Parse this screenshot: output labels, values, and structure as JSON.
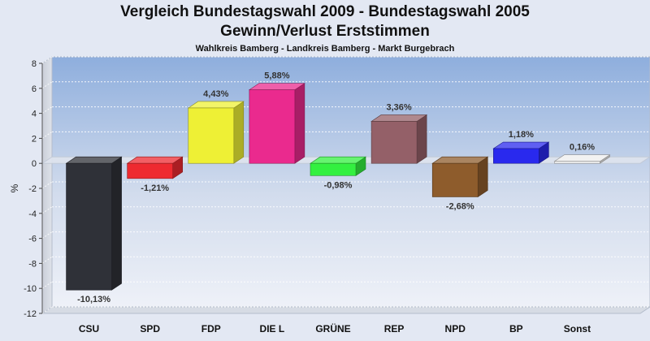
{
  "chart_data": {
    "type": "bar",
    "title": "Vergleich Bundestagswahl 2009 - Bundestagswahl 2005",
    "title2": "Gewinn/Verlust Erststimmen",
    "subtitle": "Wahlkreis Bamberg - Landkreis Bamberg - Markt Burgebrach",
    "ylabel": "%",
    "xlabel": "",
    "ylim": [
      -12,
      8
    ],
    "yticks": [
      8,
      6,
      4,
      2,
      0,
      -2,
      -4,
      -6,
      -8,
      -10,
      -12
    ],
    "grid": true,
    "categories": [
      "CSU",
      "SPD",
      "FDP",
      "DIE L",
      "GRÜNE",
      "REP",
      "NPD",
      "BP",
      "Sonst"
    ],
    "values": [
      -10.13,
      -1.21,
      4.43,
      5.88,
      -0.98,
      3.36,
      -2.68,
      1.18,
      0.16
    ],
    "value_labels": [
      "-10,13%",
      "-1,21%",
      "4,43%",
      "5,88%",
      "-0,98%",
      "3,36%",
      "-2,68%",
      "1,18%",
      "0,16%"
    ],
    "colors": [
      "#2f3138",
      "#ee2a30",
      "#eef035",
      "#ea2a8e",
      "#33f040",
      "#946068",
      "#8e5c2c",
      "#2929ee",
      "#eeeeee"
    ]
  }
}
